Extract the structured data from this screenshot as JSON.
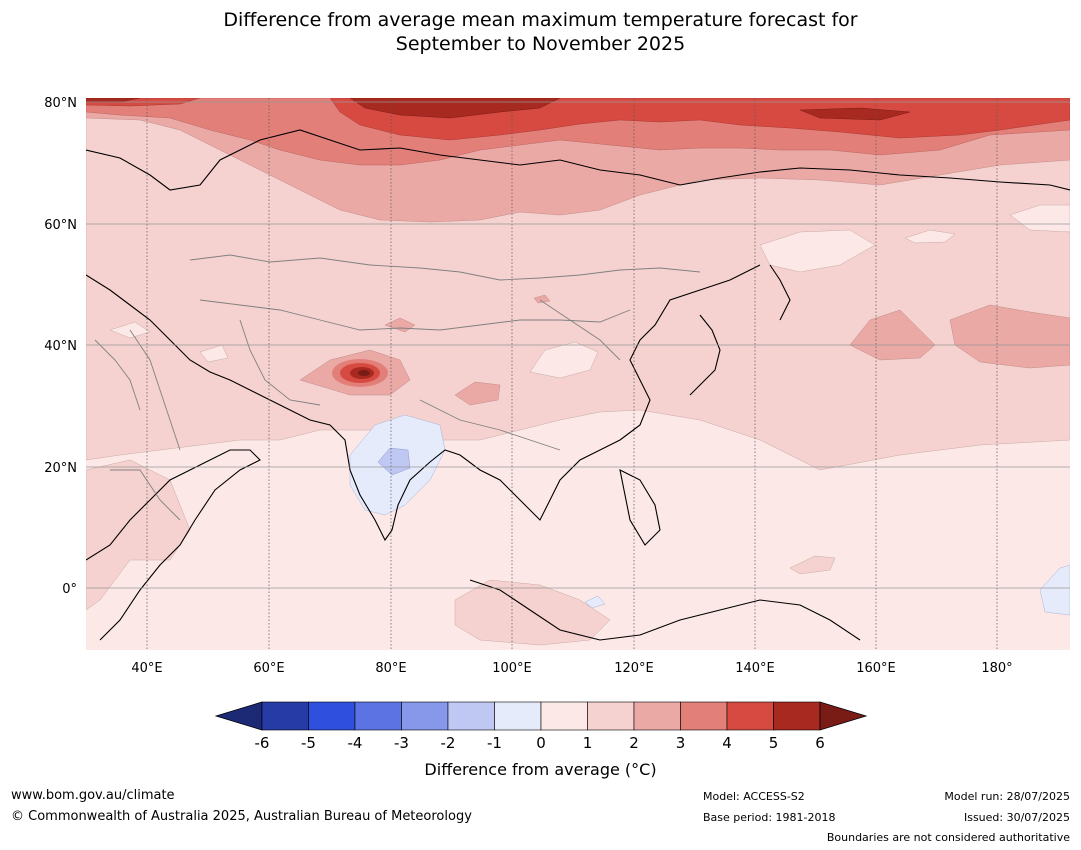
{
  "title_line1": "Difference from average mean maximum temperature forecast for",
  "title_line2": "September to November 2025",
  "map": {
    "lat_labels": [
      "80°N",
      "60°N",
      "40°N",
      "20°N",
      "0°"
    ],
    "lon_labels": [
      "40°E",
      "60°E",
      "80°E",
      "100°E",
      "120°E",
      "140°E",
      "160°E",
      "180°"
    ]
  },
  "colorbar": {
    "ticks": [
      "-6",
      "-5",
      "-4",
      "-3",
      "-2",
      "-1",
      "0",
      "1",
      "2",
      "3",
      "4",
      "5",
      "6"
    ],
    "colors": [
      "#273ba6",
      "#2f4fde",
      "#5c74e3",
      "#8797ea",
      "#bfc8f3",
      "#e6ebfb",
      "#fce8e7",
      "#f5d2cf",
      "#eba9a6",
      "#e37f79",
      "#d64a42",
      "#a8291f"
    ],
    "low_extension_color": "#1c2a75",
    "high_extension_color": "#7a1c16",
    "label": "Difference from average (°C)"
  },
  "footer": {
    "website": "www.bom.gov.au/climate",
    "copyright": "© Commonwealth of Australia 2025, Australian Bureau of Meteorology",
    "model": "Model: ACCESS-S2",
    "base_period": "Base period: 1981-2018",
    "model_run": "Model run: 28/07/2025",
    "issued": "Issued: 30/07/2025",
    "disclaimer": "Boundaries are not considered authoritative"
  }
}
